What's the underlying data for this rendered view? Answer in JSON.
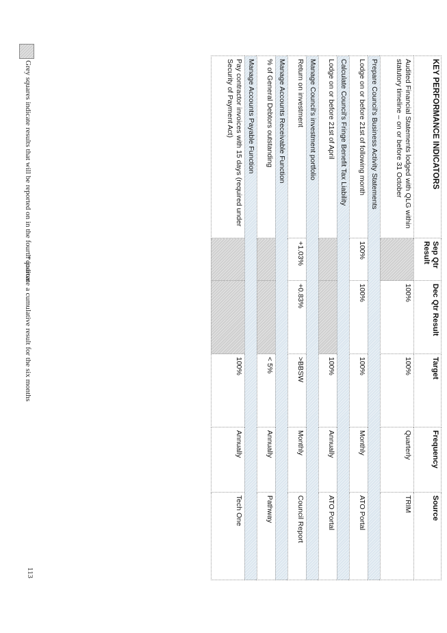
{
  "table": {
    "headers": {
      "kpi": "KEY PERFORMANCE INDICATORS",
      "sep": "Sep Qtr Result",
      "dec": "Dec Qtr Result",
      "target": "Target",
      "frequency": "Frequency",
      "source": "Source"
    },
    "rows": [
      {
        "kind": "row",
        "kpi": "Audited Financial Statements lodged with QLG within statutory timeline – on or before 31 October",
        "sep": "",
        "dec": "100%",
        "target": "100%",
        "frequency": "Quarterly",
        "source": "TRIM",
        "grey": [
          "sep"
        ]
      },
      {
        "kind": "band",
        "label": "Prepare Council's Business Activity Statements"
      },
      {
        "kind": "row",
        "kpi": "Lodge on or before 21st of following month",
        "sep": "100%",
        "dec": "100%",
        "target": "100%",
        "frequency": "Monthly",
        "source": "ATO Portal",
        "grey": []
      },
      {
        "kind": "band",
        "label": "Calculate Council's Fringe Benefit Tax Liability"
      },
      {
        "kind": "row",
        "kpi": "Lodge on or before 21st of April",
        "sep": "",
        "dec": "",
        "target": "100%",
        "frequency": "Annually",
        "source": "ATO Portal",
        "grey": [
          "sep",
          "dec"
        ]
      },
      {
        "kind": "band",
        "label": "Manage Council's investment portfolio"
      },
      {
        "kind": "row",
        "kpi": "Return on investment",
        "sep": "+1.03%",
        "dec": "+0.83%",
        "target": ">BBSW",
        "frequency": "Monthly",
        "source": "Council Report",
        "grey": []
      },
      {
        "kind": "band",
        "label": "Manage Accounts Receivable Function"
      },
      {
        "kind": "row",
        "kpi": "% of General Debtors outstanding",
        "sep": "",
        "dec": "",
        "target": "< 5%",
        "frequency": "Annually",
        "source": "Pathway",
        "grey": [
          "sep",
          "dec"
        ]
      },
      {
        "kind": "band",
        "label": "Manage Accounts Payable Function"
      },
      {
        "kind": "row",
        "kpi": "Pay contractor invoices with 15 days (required under Security of Payment Act)",
        "sep": "",
        "dec": "",
        "target": "100%",
        "frequency": "Annually",
        "source": "Tech One",
        "grey": [
          "sep",
          "dec"
        ]
      }
    ]
  },
  "footer": {
    "note": "Grey squares indicate results that will be reported on in the fourth quarter",
    "cumulative": "* indicate a cumulative result for the six months",
    "page_number": "113"
  },
  "colors": {
    "band": "#dbe6ef",
    "grey": "#cfcfcf"
  }
}
